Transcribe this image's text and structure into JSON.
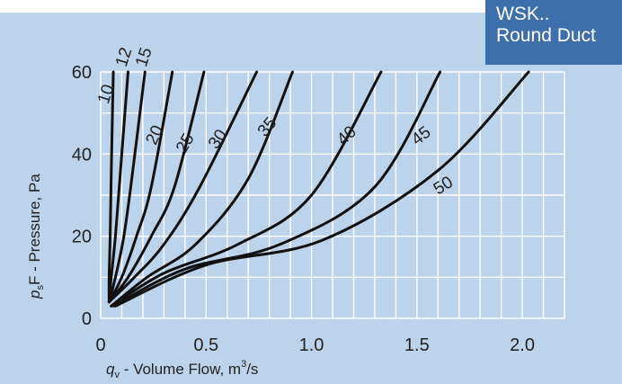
{
  "badge": {
    "line1": "WSK..",
    "line2": "Round Duct"
  },
  "colors": {
    "panel": "#bcd3ec",
    "badge": "#3d6faa",
    "grid": "#ffffff",
    "curve": "#111111"
  },
  "chart_data": {
    "type": "line",
    "title": "",
    "xlabel_prefix": "q",
    "xlabel_sub": "v",
    "xlabel_text": " - Volume Flow, m",
    "xlabel_sup": "3",
    "xlabel_suffix": "/s",
    "ylabel_prefix": "p",
    "ylabel_sub": "s",
    "ylabel_text": "F - Pressure, Pa",
    "xlim": [
      0,
      2.2
    ],
    "ylim": [
      0,
      60
    ],
    "x_ticks": [
      {
        "v": 0,
        "label": "0"
      },
      {
        "v": 0.5,
        "label": "0.5"
      },
      {
        "v": 1.0,
        "label": "1.0"
      },
      {
        "v": 1.5,
        "label": "1.5"
      },
      {
        "v": 2.0,
        "label": "2.0"
      }
    ],
    "y_ticks": [
      {
        "v": 0,
        "label": "0"
      },
      {
        "v": 20,
        "label": "20"
      },
      {
        "v": 40,
        "label": "40"
      },
      {
        "v": 60,
        "label": "60"
      }
    ],
    "grid": true,
    "series": [
      {
        "name": "10",
        "points": [
          [
            0.04,
            4
          ],
          [
            0.04,
            10
          ],
          [
            0.045,
            20
          ],
          [
            0.05,
            35
          ],
          [
            0.06,
            60
          ]
        ]
      },
      {
        "name": "12",
        "points": [
          [
            0.04,
            4
          ],
          [
            0.05,
            10
          ],
          [
            0.07,
            20
          ],
          [
            0.1,
            40
          ],
          [
            0.13,
            60
          ]
        ]
      },
      {
        "name": "15",
        "points": [
          [
            0.04,
            4
          ],
          [
            0.07,
            10
          ],
          [
            0.11,
            20
          ],
          [
            0.15,
            35
          ],
          [
            0.21,
            60
          ]
        ]
      },
      {
        "name": "20",
        "points": [
          [
            0.04,
            4
          ],
          [
            0.1,
            10
          ],
          [
            0.17,
            20
          ],
          [
            0.24,
            32
          ],
          [
            0.34,
            60
          ]
        ]
      },
      {
        "name": "25",
        "points": [
          [
            0.04,
            4
          ],
          [
            0.13,
            10
          ],
          [
            0.24,
            20
          ],
          [
            0.35,
            32
          ],
          [
            0.49,
            60
          ]
        ]
      },
      {
        "name": "30",
        "points": [
          [
            0.04,
            4
          ],
          [
            0.16,
            10
          ],
          [
            0.3,
            18
          ],
          [
            0.47,
            32
          ],
          [
            0.74,
            60
          ]
        ]
      },
      {
        "name": "35",
        "points": [
          [
            0.05,
            3
          ],
          [
            0.22,
            10
          ],
          [
            0.45,
            18
          ],
          [
            0.7,
            34
          ],
          [
            0.91,
            60
          ]
        ]
      },
      {
        "name": "40",
        "points": [
          [
            0.05,
            3
          ],
          [
            0.3,
            11
          ],
          [
            0.65,
            18
          ],
          [
            1.0,
            30
          ],
          [
            1.33,
            60
          ]
        ]
      },
      {
        "name": "45",
        "points": [
          [
            0.06,
            3
          ],
          [
            0.4,
            12
          ],
          [
            0.85,
            18
          ],
          [
            1.3,
            32
          ],
          [
            1.61,
            60
          ]
        ]
      },
      {
        "name": "50",
        "points": [
          [
            0.07,
            3
          ],
          [
            0.5,
            13
          ],
          [
            1.05,
            19
          ],
          [
            1.6,
            36
          ],
          [
            2.03,
            60
          ]
        ]
      }
    ],
    "annotations": [
      {
        "text": "10",
        "x": 0.035,
        "y": 52,
        "angle": -72
      },
      {
        "text": "12",
        "x": 0.12,
        "y": 61,
        "angle": -72
      },
      {
        "text": "15",
        "x": 0.215,
        "y": 61,
        "angle": -72
      },
      {
        "text": "20",
        "x": 0.26,
        "y": 42,
        "angle": -65
      },
      {
        "text": "25",
        "x": 0.4,
        "y": 40,
        "angle": -60
      },
      {
        "text": "30",
        "x": 0.55,
        "y": 41,
        "angle": -55
      },
      {
        "text": "35",
        "x": 0.78,
        "y": 44,
        "angle": -50
      },
      {
        "text": "40",
        "x": 1.15,
        "y": 42,
        "angle": -42
      },
      {
        "text": "45",
        "x": 1.5,
        "y": 42,
        "angle": -38
      },
      {
        "text": "50",
        "x": 1.6,
        "y": 30,
        "angle": -32
      }
    ]
  }
}
